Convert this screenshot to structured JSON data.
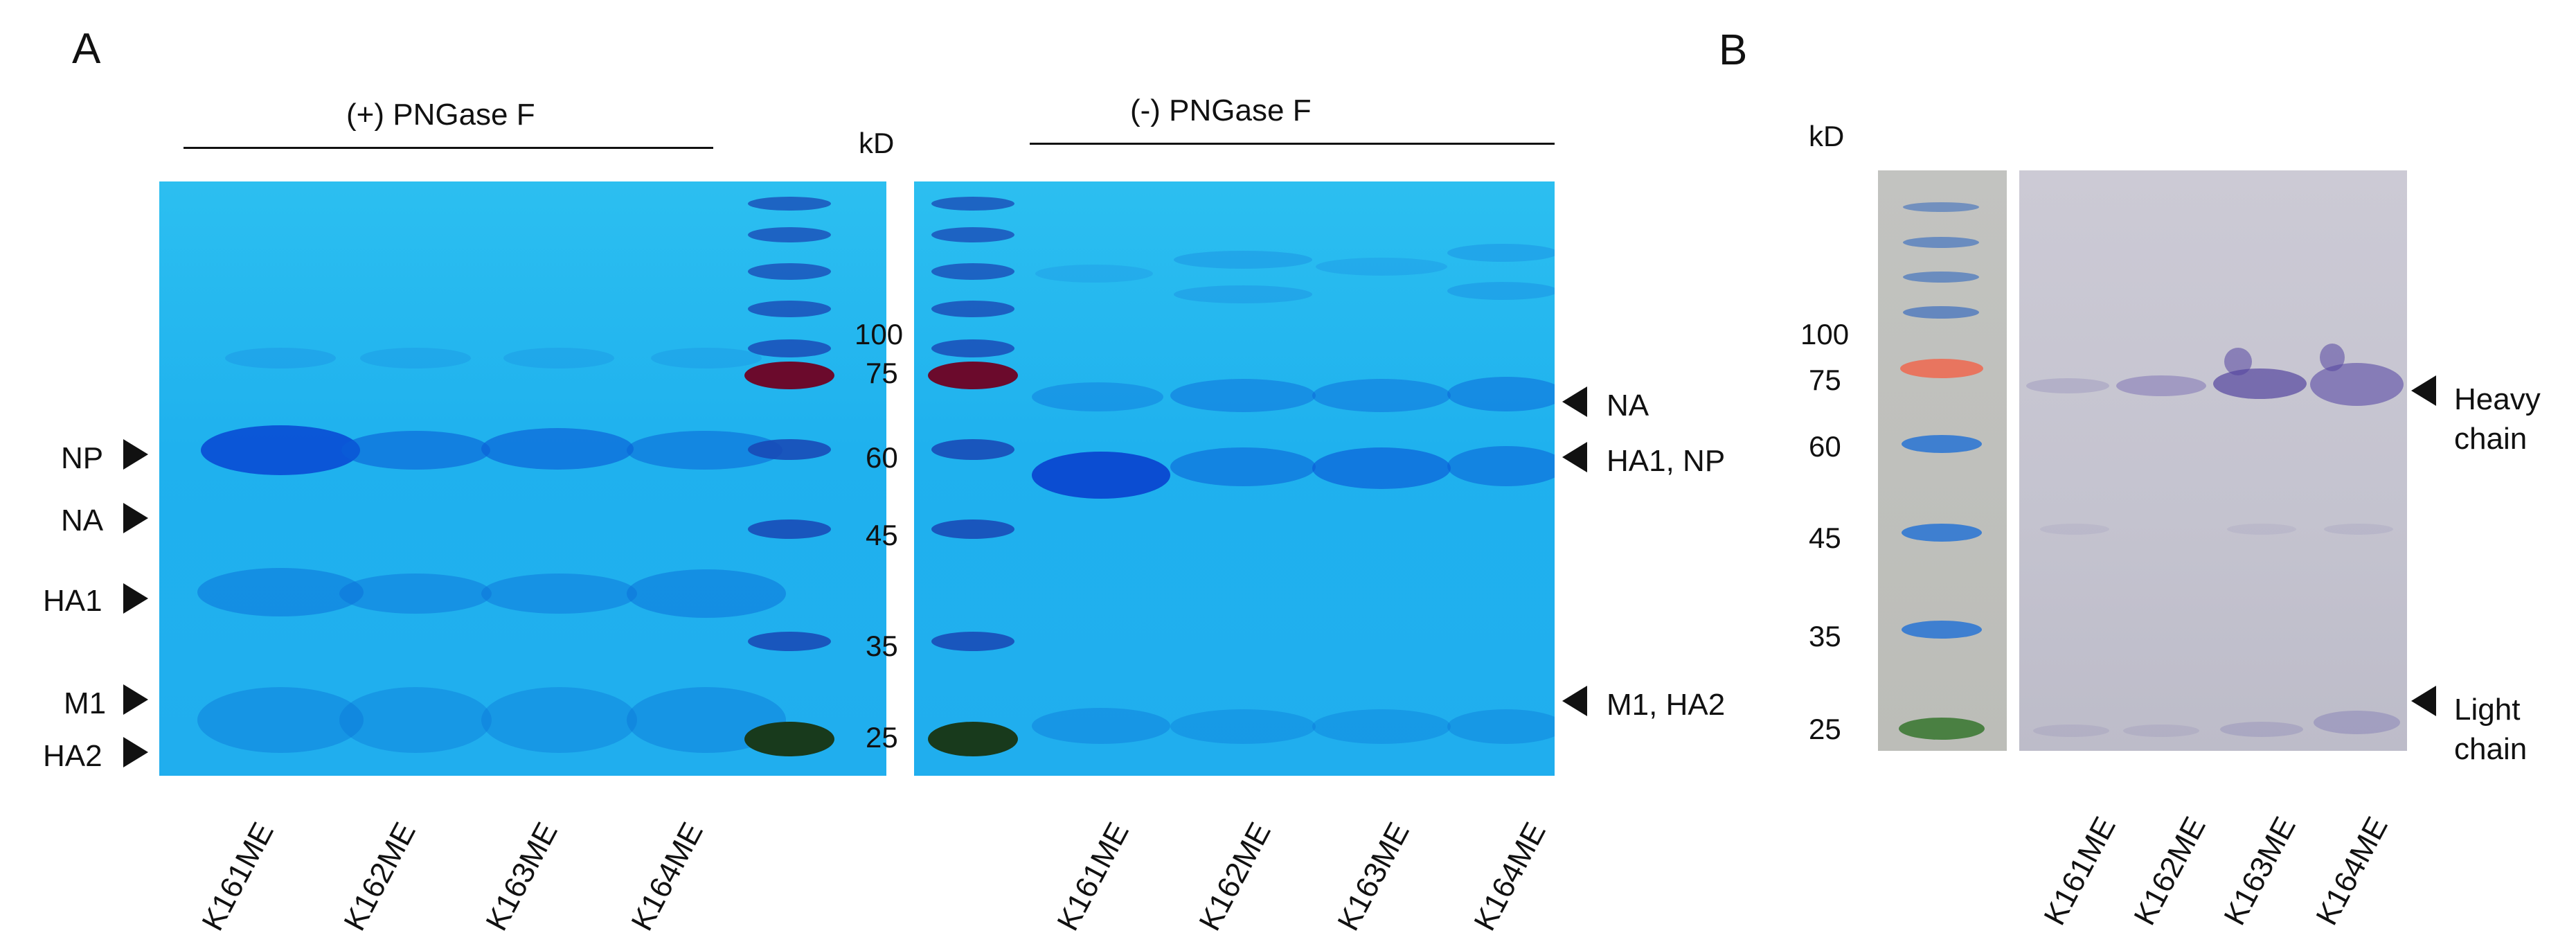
{
  "panels": {
    "a": {
      "letter": "A",
      "left_condition": "(+) PNGase F",
      "right_condition": "(-) PNGase F",
      "unit": "kD",
      "markers": [
        "100",
        "75",
        "60",
        "45",
        "35",
        "25"
      ],
      "left_bands": [
        "NP",
        "NA",
        "HA1",
        "M1",
        "HA2"
      ],
      "right_bands": [
        "NA",
        "HA1, NP",
        "M1, HA2"
      ],
      "left_lanes": [
        "K161ME",
        "K162ME",
        "K163ME",
        "K164ME"
      ],
      "right_lanes": [
        "K161ME",
        "K162ME",
        "K163ME",
        "K164ME"
      ]
    },
    "b": {
      "letter": "B",
      "unit": "kD",
      "markers": [
        "100",
        "75",
        "60",
        "45",
        "35",
        "25"
      ],
      "heavy_chain": "Heavy chain",
      "light_chain": "Light chain",
      "lanes": [
        "K161ME",
        "K162ME",
        "K163ME",
        "K164ME"
      ]
    }
  }
}
